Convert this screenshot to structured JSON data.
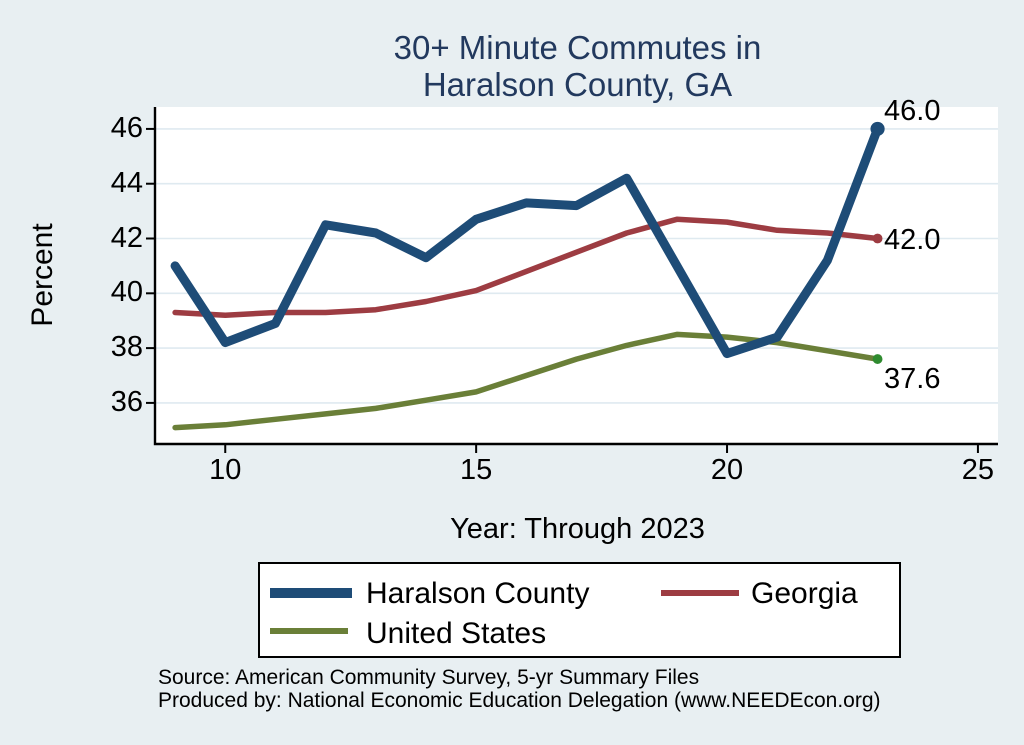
{
  "colors": {
    "background": "#e8eff2",
    "plot_background": "#ffffff",
    "gridline": "#dfeaf0",
    "axis": "#000000",
    "title": "#22395e",
    "text": "#000000"
  },
  "chart_data": {
    "type": "line",
    "title": "30+ Minute Commutes in Haralson County, GA",
    "title_lines": [
      "30+ Minute Commutes in",
      "Haralson County, GA"
    ],
    "xlabel": "Year: Through 2023",
    "ylabel": "Percent",
    "grid": "horizontal",
    "legend_position": "bottom",
    "x": [
      9,
      10,
      11,
      12,
      13,
      14,
      15,
      16,
      17,
      18,
      19,
      20,
      21,
      22,
      23
    ],
    "xticks": [
      10,
      15,
      20,
      25
    ],
    "yticks": [
      36,
      38,
      40,
      42,
      44,
      46
    ],
    "xlim": [
      8.6,
      25.4
    ],
    "ylim": [
      34.5,
      46.8
    ],
    "series": [
      {
        "name": "Haralson County",
        "color": "#1e4c77",
        "line_width": 9,
        "values": [
          41.0,
          38.2,
          38.9,
          42.5,
          42.2,
          41.3,
          42.7,
          43.3,
          43.2,
          44.2,
          41.0,
          37.8,
          38.4,
          41.2,
          46.0
        ],
        "end_label": "46.0",
        "end_dot_color": "#1e4c77"
      },
      {
        "name": "Georgia",
        "color": "#9d3c42",
        "line_width": 5.5,
        "values": [
          39.3,
          39.2,
          39.3,
          39.3,
          39.4,
          39.7,
          40.1,
          40.8,
          41.5,
          42.2,
          42.7,
          42.6,
          42.3,
          42.2,
          42.0
        ],
        "end_label": "42.0",
        "end_dot_color": "#9d3c42"
      },
      {
        "name": "United States",
        "color": "#6a7f38",
        "line_width": 5.5,
        "values": [
          35.1,
          35.2,
          35.4,
          35.6,
          35.8,
          36.1,
          36.4,
          37.0,
          37.6,
          38.1,
          38.5,
          38.4,
          38.2,
          37.9,
          37.6
        ],
        "end_label": "37.6",
        "end_dot_color": "#2f8b2f"
      }
    ]
  },
  "source": {
    "line1": "Source: American Community Survey, 5-yr Summary Files",
    "line2": "Produced by: National Economic Education Delegation (www.NEEDEcon.org)"
  }
}
